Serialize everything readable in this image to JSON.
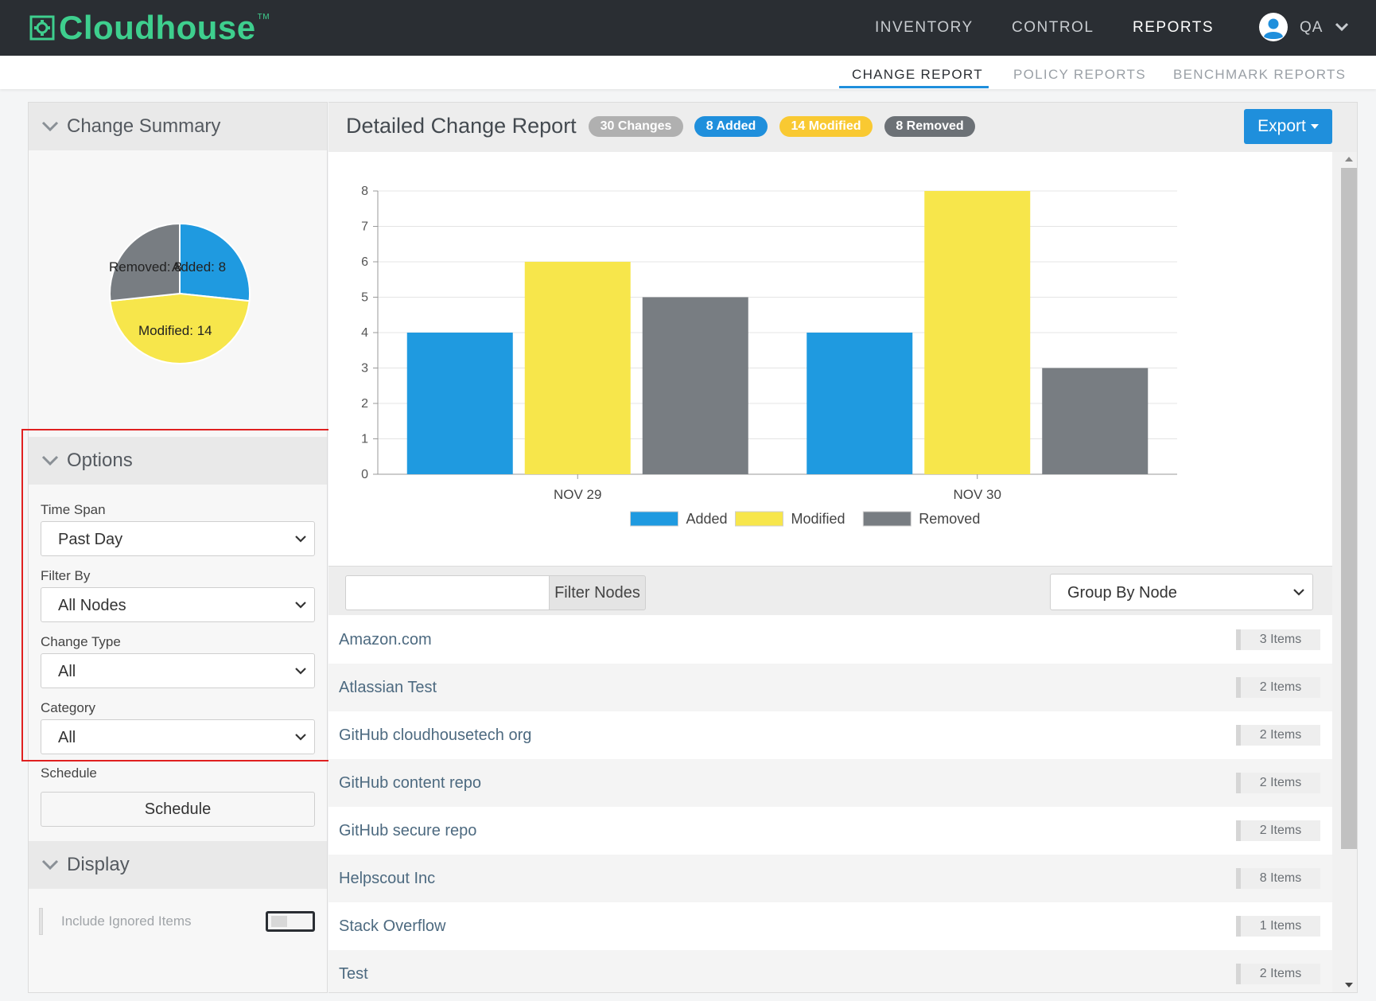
{
  "app": {
    "brand": "Cloudhouse",
    "trademark": "TM"
  },
  "topnav": {
    "items": [
      {
        "label": "INVENTORY",
        "active": false
      },
      {
        "label": "CONTROL",
        "active": false
      },
      {
        "label": "REPORTS",
        "active": true
      }
    ],
    "user": {
      "name": "QA",
      "icon": "user-avatar-icon"
    }
  },
  "subnav": {
    "items": [
      {
        "label": "CHANGE REPORT",
        "active": true
      },
      {
        "label": "POLICY REPORTS",
        "active": false
      },
      {
        "label": "BENCHMARK REPORTS",
        "active": false
      }
    ]
  },
  "change_summary": {
    "title": "Change Summary",
    "pie": {
      "slices": [
        {
          "label": "Added: 8",
          "name": "Added",
          "value": 8,
          "color": "#1f9ae0"
        },
        {
          "label": "Modified: 14",
          "name": "Modified",
          "value": 14,
          "color": "#f7e64b"
        },
        {
          "label": "Removed: 8",
          "name": "Removed",
          "value": 8,
          "color": "#787d82"
        }
      ]
    }
  },
  "options": {
    "title": "Options",
    "time_span": {
      "label": "Time Span",
      "value": "Past Day"
    },
    "filter_by": {
      "label": "Filter By",
      "value": "All Nodes"
    },
    "change_type": {
      "label": "Change Type",
      "value": "All"
    },
    "category": {
      "label": "Category",
      "value": "All"
    },
    "schedule": {
      "label": "Schedule",
      "button": "Schedule"
    }
  },
  "display": {
    "title": "Display",
    "include_ignored": {
      "label": "Include Ignored Items",
      "on": false
    }
  },
  "report": {
    "title": "Detailed Change Report",
    "badges": [
      {
        "label": "30 Changes",
        "color": "#b0b0b0"
      },
      {
        "label": "8 Added",
        "color": "#1f8fdc"
      },
      {
        "label": "14 Modified",
        "color": "#f9c932"
      },
      {
        "label": "8 Removed",
        "color": "#6c7176"
      }
    ],
    "export_label": "Export"
  },
  "chart_data": {
    "type": "bar",
    "categories": [
      "NOV 29",
      "NOV 30"
    ],
    "series": [
      {
        "name": "Added",
        "values": [
          4,
          4
        ],
        "color": "#1f9ae0"
      },
      {
        "name": "Modified",
        "values": [
          6,
          8
        ],
        "color": "#f7e64b"
      },
      {
        "name": "Removed",
        "values": [
          5,
          3
        ],
        "color": "#787d82"
      }
    ],
    "ylim": [
      0,
      8
    ],
    "yticks": [
      "0",
      "1",
      "2",
      "3",
      "4",
      "5",
      "6",
      "7",
      "8"
    ],
    "grid": true,
    "legend": "bottom"
  },
  "filter": {
    "input_value": "",
    "button_label": "Filter Nodes",
    "group_by": "Group By Node"
  },
  "nodes": [
    {
      "name": "Amazon.com",
      "count": "3 Items"
    },
    {
      "name": "Atlassian Test",
      "count": "2 Items"
    },
    {
      "name": "GitHub cloudhousetech org",
      "count": "2 Items"
    },
    {
      "name": "GitHub content repo",
      "count": "2 Items"
    },
    {
      "name": "GitHub secure repo",
      "count": "2 Items"
    },
    {
      "name": "Helpscout Inc",
      "count": "8 Items"
    },
    {
      "name": "Stack Overflow",
      "count": "1 Items"
    },
    {
      "name": "Test",
      "count": "2 Items"
    }
  ]
}
